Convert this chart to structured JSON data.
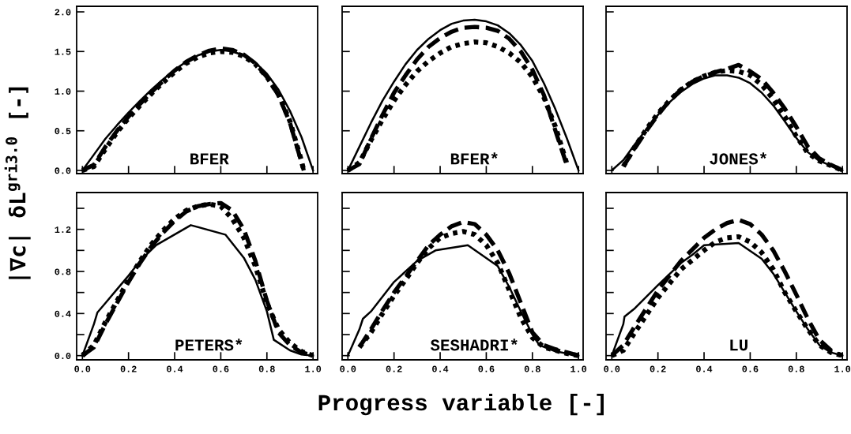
{
  "chart_data": [
    {
      "type": "line",
      "title": "BFER",
      "ylabel": "|∇c| δL$^{gri3.0}$ [-]",
      "xlim": [
        -0.025,
        1.02
      ],
      "ylim": [
        -0.04,
        2.07
      ],
      "tick_labels": "y",
      "grid": false,
      "xticks": [
        {
          "value": 0,
          "label": null
        },
        {
          "value": 0.2,
          "label": null
        },
        {
          "value": 0.4,
          "label": null
        },
        {
          "value": 0.6,
          "label": null
        },
        {
          "value": 0.8,
          "label": null
        },
        {
          "value": 1.0,
          "label": null
        }
      ],
      "yticks": [
        {
          "value": 0,
          "label": "0.0"
        },
        {
          "value": 0.5,
          "label": "0.5"
        },
        {
          "value": 1.0,
          "label": "1.0"
        },
        {
          "value": 1.5,
          "label": "1.5"
        },
        {
          "value": 2.0,
          "label": "2.0"
        }
      ],
      "series": [
        {
          "color": "#000000",
          "line_style": "solid",
          "x": [
            0,
            0.05,
            0.1,
            0.15,
            0.2,
            0.25,
            0.3,
            0.35,
            0.4,
            0.45,
            0.5,
            0.55,
            0.6,
            0.65,
            0.7,
            0.75,
            0.8,
            0.85,
            0.9,
            0.95,
            1.0
          ],
          "values": [
            0,
            0.2,
            0.4,
            0.57,
            0.73,
            0.88,
            1.02,
            1.15,
            1.27,
            1.37,
            1.45,
            1.5,
            1.52,
            1.5,
            1.45,
            1.36,
            1.22,
            1.02,
            0.75,
            0.42,
            0
          ]
        },
        {
          "color": "#000000",
          "line_style": "dashed",
          "x": [
            0,
            0.05,
            0.1,
            0.15,
            0.2,
            0.25,
            0.3,
            0.35,
            0.4,
            0.45,
            0.5,
            0.55,
            0.6,
            0.65,
            0.7,
            0.75,
            0.8,
            0.85,
            0.9,
            0.95,
            0.96
          ],
          "values": [
            0,
            0.07,
            0.3,
            0.5,
            0.68,
            0.84,
            0.99,
            1.13,
            1.26,
            1.37,
            1.45,
            1.51,
            1.54,
            1.52,
            1.46,
            1.35,
            1.18,
            0.95,
            0.6,
            0.1,
            0
          ]
        },
        {
          "color": "#000000",
          "line_style": "dotted",
          "x": [
            0,
            0.05,
            0.1,
            0.15,
            0.2,
            0.25,
            0.3,
            0.35,
            0.4,
            0.45,
            0.5,
            0.55,
            0.6,
            0.65,
            0.7,
            0.75,
            0.8,
            0.85,
            0.9,
            0.95,
            0.96
          ],
          "values": [
            0,
            0.05,
            0.27,
            0.48,
            0.66,
            0.82,
            0.97,
            1.11,
            1.24,
            1.35,
            1.43,
            1.48,
            1.5,
            1.49,
            1.44,
            1.34,
            1.18,
            0.96,
            0.62,
            0.12,
            0
          ]
        }
      ]
    },
    {
      "type": "line",
      "title": "BFER*",
      "xlim": [
        -0.025,
        1.02
      ],
      "ylim": [
        -0.04,
        2.07
      ],
      "tick_labels": false,
      "grid": false,
      "xticks": [
        {
          "value": 0,
          "label": null
        },
        {
          "value": 0.2,
          "label": null
        },
        {
          "value": 0.4,
          "label": null
        },
        {
          "value": 0.6,
          "label": null
        },
        {
          "value": 0.8,
          "label": null
        },
        {
          "value": 1.0,
          "label": null
        }
      ],
      "yticks": [
        {
          "value": 0,
          "label": null
        },
        {
          "value": 0.5,
          "label": null
        },
        {
          "value": 1.0,
          "label": null
        },
        {
          "value": 1.5,
          "label": null
        },
        {
          "value": 2.0,
          "label": null
        }
      ],
      "series": [
        {
          "color": "#000000",
          "line_style": "solid",
          "x": [
            0,
            0.05,
            0.1,
            0.15,
            0.2,
            0.25,
            0.3,
            0.35,
            0.4,
            0.45,
            0.5,
            0.55,
            0.6,
            0.65,
            0.7,
            0.75,
            0.8,
            0.85,
            0.9,
            0.95,
            1.0
          ],
          "values": [
            0,
            0.3,
            0.6,
            0.88,
            1.12,
            1.34,
            1.52,
            1.66,
            1.77,
            1.85,
            1.89,
            1.9,
            1.88,
            1.83,
            1.73,
            1.58,
            1.38,
            1.1,
            0.77,
            0.4,
            0
          ]
        },
        {
          "color": "#000000",
          "line_style": "dashed",
          "x": [
            0,
            0.05,
            0.1,
            0.15,
            0.2,
            0.25,
            0.3,
            0.35,
            0.4,
            0.45,
            0.5,
            0.55,
            0.6,
            0.65,
            0.7,
            0.75,
            0.8,
            0.85,
            0.9,
            0.95
          ],
          "values": [
            0,
            0.08,
            0.4,
            0.7,
            0.98,
            1.2,
            1.4,
            1.56,
            1.67,
            1.75,
            1.8,
            1.81,
            1.8,
            1.76,
            1.66,
            1.5,
            1.27,
            0.95,
            0.5,
            0.06
          ]
        },
        {
          "color": "#000000",
          "line_style": "dotted",
          "x": [
            0,
            0.05,
            0.1,
            0.15,
            0.2,
            0.25,
            0.3,
            0.35,
            0.4,
            0.45,
            0.5,
            0.55,
            0.6,
            0.65,
            0.7,
            0.75,
            0.8,
            0.85,
            0.9,
            0.95
          ],
          "values": [
            0,
            0.1,
            0.38,
            0.64,
            0.88,
            1.08,
            1.25,
            1.38,
            1.48,
            1.56,
            1.6,
            1.62,
            1.61,
            1.56,
            1.48,
            1.36,
            1.18,
            0.92,
            0.55,
            0.08
          ]
        }
      ]
    },
    {
      "type": "line",
      "title": "JONES*",
      "xlim": [
        -0.025,
        1.02
      ],
      "ylim": [
        -0.04,
        2.07
      ],
      "tick_labels": false,
      "grid": false,
      "xticks": [
        {
          "value": 0,
          "label": null
        },
        {
          "value": 0.2,
          "label": null
        },
        {
          "value": 0.4,
          "label": null
        },
        {
          "value": 0.6,
          "label": null
        },
        {
          "value": 0.8,
          "label": null
        },
        {
          "value": 1.0,
          "label": null
        }
      ],
      "yticks": [
        {
          "value": 0,
          "label": null
        },
        {
          "value": 0.5,
          "label": null
        },
        {
          "value": 1.0,
          "label": null
        },
        {
          "value": 1.5,
          "label": null
        },
        {
          "value": 2.0,
          "label": null
        }
      ],
      "series": [
        {
          "color": "#000000",
          "line_style": "solid",
          "x": [
            0,
            0.05,
            0.1,
            0.15,
            0.2,
            0.25,
            0.3,
            0.35,
            0.4,
            0.45,
            0.5,
            0.55,
            0.6,
            0.65,
            0.7,
            0.75,
            0.8,
            0.85,
            0.9,
            0.95,
            1.0
          ],
          "values": [
            0,
            0.13,
            0.33,
            0.52,
            0.7,
            0.86,
            0.99,
            1.09,
            1.16,
            1.2,
            1.2,
            1.17,
            1.1,
            0.98,
            0.82,
            0.62,
            0.41,
            0.23,
            0.12,
            0.06,
            0
          ]
        },
        {
          "color": "#000000",
          "line_style": "dashed",
          "x": [
            0.05,
            0.1,
            0.15,
            0.2,
            0.25,
            0.3,
            0.35,
            0.4,
            0.45,
            0.5,
            0.55,
            0.6,
            0.65,
            0.7,
            0.75,
            0.8,
            0.85,
            0.9,
            0.95,
            1.0
          ],
          "values": [
            0.05,
            0.28,
            0.5,
            0.7,
            0.88,
            1.02,
            1.12,
            1.19,
            1.24,
            1.28,
            1.33,
            1.25,
            1.15,
            0.98,
            0.78,
            0.55,
            0.3,
            0.15,
            0.07,
            0
          ]
        },
        {
          "color": "#000000",
          "line_style": "dotted",
          "x": [
            0.05,
            0.1,
            0.15,
            0.2,
            0.25,
            0.3,
            0.35,
            0.4,
            0.45,
            0.5,
            0.55,
            0.6,
            0.65,
            0.7,
            0.75,
            0.8,
            0.85,
            0.9,
            0.95,
            1.0
          ],
          "values": [
            0.05,
            0.3,
            0.52,
            0.72,
            0.88,
            1.02,
            1.12,
            1.19,
            1.24,
            1.26,
            1.25,
            1.2,
            1.08,
            0.9,
            0.68,
            0.43,
            0.22,
            0.12,
            0.06,
            0
          ]
        }
      ]
    },
    {
      "type": "line",
      "title": "PETERS*",
      "xlim": [
        -0.025,
        1.02
      ],
      "ylim": [
        -0.04,
        1.55
      ],
      "grid": false,
      "xticks": [
        {
          "value": 0,
          "label": "0.0"
        },
        {
          "value": 0.2,
          "label": "0.2"
        },
        {
          "value": 0.4,
          "label": "0.4"
        },
        {
          "value": 0.6,
          "label": "0.6"
        },
        {
          "value": 0.8,
          "label": "0.8"
        },
        {
          "value": 1.0,
          "label": "1.0"
        }
      ],
      "yticks": [
        {
          "value": 0,
          "label": "0.0"
        },
        {
          "value": 0.2,
          "label": null
        },
        {
          "value": 0.4,
          "label": "0.4"
        },
        {
          "value": 0.6,
          "label": null
        },
        {
          "value": 0.8,
          "label": "0.8"
        },
        {
          "value": 1.0,
          "label": null
        },
        {
          "value": 1.2,
          "label": "1.2"
        },
        {
          "value": 1.4,
          "label": null
        }
      ],
      "series": [
        {
          "color": "#000000",
          "line_style": "solid",
          "x": [
            0,
            0.05,
            0.065,
            0.1,
            0.15,
            0.2,
            0.25,
            0.32,
            0.47,
            0.62,
            0.7,
            0.75,
            0.8,
            0.83,
            0.9,
            0.95,
            1.0
          ],
          "values": [
            0,
            0.3,
            0.41,
            0.5,
            0.63,
            0.76,
            0.9,
            1.05,
            1.24,
            1.15,
            0.93,
            0.72,
            0.42,
            0.15,
            0.05,
            0.01,
            0
          ]
        },
        {
          "color": "#000000",
          "line_style": "dashed",
          "x": [
            0,
            0.05,
            0.1,
            0.15,
            0.2,
            0.25,
            0.3,
            0.35,
            0.4,
            0.45,
            0.5,
            0.55,
            0.6,
            0.65,
            0.7,
            0.75,
            0.8,
            0.85,
            0.9,
            0.95,
            1.0
          ],
          "values": [
            0,
            0.08,
            0.3,
            0.5,
            0.7,
            0.88,
            1.04,
            1.17,
            1.28,
            1.37,
            1.42,
            1.44,
            1.45,
            1.38,
            1.2,
            0.9,
            0.52,
            0.22,
            0.1,
            0.03,
            0
          ]
        },
        {
          "color": "#000000",
          "line_style": "dotted",
          "x": [
            0,
            0.05,
            0.1,
            0.15,
            0.2,
            0.25,
            0.3,
            0.35,
            0.4,
            0.45,
            0.5,
            0.55,
            0.6,
            0.65,
            0.7,
            0.75,
            0.8,
            0.85,
            0.9,
            0.95,
            1.0
          ],
          "values": [
            0,
            0.1,
            0.32,
            0.52,
            0.72,
            0.9,
            1.06,
            1.19,
            1.3,
            1.38,
            1.42,
            1.44,
            1.42,
            1.3,
            1.12,
            0.85,
            0.5,
            0.25,
            0.12,
            0.04,
            0
          ]
        }
      ]
    },
    {
      "type": "line",
      "title": "SESHADRI*",
      "xlabel": "Progress variable [-]",
      "xlim": [
        -0.025,
        1.02
      ],
      "ylim": [
        -0.04,
        1.55
      ],
      "tick_labels": "x",
      "grid": false,
      "xticks": [
        {
          "value": 0,
          "label": "0.0"
        },
        {
          "value": 0.2,
          "label": "0.2"
        },
        {
          "value": 0.4,
          "label": "0.4"
        },
        {
          "value": 0.6,
          "label": "0.6"
        },
        {
          "value": 0.8,
          "label": "0.8"
        },
        {
          "value": 1.0,
          "label": "1.0"
        }
      ],
      "yticks": [
        {
          "value": 0,
          "label": null
        },
        {
          "value": 0.2,
          "label": null
        },
        {
          "value": 0.4,
          "label": null
        },
        {
          "value": 0.6,
          "label": null
        },
        {
          "value": 0.8,
          "label": null
        },
        {
          "value": 1.0,
          "label": null
        },
        {
          "value": 1.2,
          "label": null
        },
        {
          "value": 1.4,
          "label": null
        }
      ],
      "series": [
        {
          "color": "#000000",
          "line_style": "solid",
          "x": [
            0,
            0.05,
            0.065,
            0.1,
            0.2,
            0.3,
            0.38,
            0.52,
            0.65,
            0.7,
            0.75,
            0.8,
            0.83,
            0.9,
            1.0
          ],
          "values": [
            0,
            0.25,
            0.35,
            0.42,
            0.7,
            0.9,
            1.0,
            1.05,
            0.85,
            0.65,
            0.42,
            0.2,
            0.1,
            0.04,
            0
          ]
        },
        {
          "color": "#000000",
          "line_style": "dashed",
          "x": [
            0.05,
            0.1,
            0.15,
            0.2,
            0.25,
            0.3,
            0.35,
            0.4,
            0.45,
            0.5,
            0.55,
            0.6,
            0.65,
            0.7,
            0.75,
            0.8,
            0.85,
            0.9,
            0.95,
            1.0
          ],
          "values": [
            0.08,
            0.25,
            0.43,
            0.6,
            0.75,
            0.9,
            1.05,
            1.15,
            1.23,
            1.27,
            1.25,
            1.15,
            1.0,
            0.78,
            0.5,
            0.22,
            0.1,
            0.06,
            0.03,
            0
          ]
        },
        {
          "color": "#000000",
          "line_style": "dotted",
          "x": [
            0.05,
            0.1,
            0.15,
            0.2,
            0.25,
            0.3,
            0.35,
            0.4,
            0.45,
            0.5,
            0.55,
            0.6,
            0.65,
            0.7,
            0.75,
            0.8,
            0.85,
            0.9,
            0.95,
            1.0
          ],
          "values": [
            0.08,
            0.22,
            0.4,
            0.57,
            0.72,
            0.88,
            1.02,
            1.12,
            1.16,
            1.18,
            1.15,
            1.05,
            0.88,
            0.62,
            0.36,
            0.17,
            0.08,
            0.05,
            0.02,
            0
          ]
        }
      ]
    },
    {
      "type": "line",
      "title": "LU",
      "xlim": [
        -0.025,
        1.02
      ],
      "ylim": [
        -0.04,
        1.55
      ],
      "tick_labels": "x",
      "grid": false,
      "xticks": [
        {
          "value": 0,
          "label": "0.0"
        },
        {
          "value": 0.2,
          "label": "0.2"
        },
        {
          "value": 0.4,
          "label": "0.4"
        },
        {
          "value": 0.6,
          "label": "0.6"
        },
        {
          "value": 0.8,
          "label": "0.8"
        },
        {
          "value": 1.0,
          "label": "1.0"
        }
      ],
      "yticks": [
        {
          "value": 0,
          "label": null
        },
        {
          "value": 0.2,
          "label": null
        },
        {
          "value": 0.4,
          "label": null
        },
        {
          "value": 0.6,
          "label": null
        },
        {
          "value": 0.8,
          "label": null
        },
        {
          "value": 1.0,
          "label": null
        },
        {
          "value": 1.2,
          "label": null
        },
        {
          "value": 1.4,
          "label": null
        }
      ],
      "series": [
        {
          "color": "#000000",
          "line_style": "solid",
          "x": [
            0,
            0.05,
            0.055,
            0.1,
            0.2,
            0.3,
            0.35,
            0.4,
            0.55,
            0.65,
            0.7,
            0.75,
            0.8,
            0.85,
            0.9,
            0.95,
            1.0
          ],
          "values": [
            0,
            0.3,
            0.37,
            0.45,
            0.67,
            0.88,
            0.96,
            1.05,
            1.07,
            0.92,
            0.78,
            0.6,
            0.42,
            0.25,
            0.1,
            0.03,
            0
          ]
        },
        {
          "color": "#000000",
          "line_style": "dashed",
          "x": [
            0,
            0.05,
            0.1,
            0.2,
            0.3,
            0.4,
            0.45,
            0.5,
            0.55,
            0.6,
            0.65,
            0.7,
            0.75,
            0.8,
            0.85,
            0.9,
            0.95,
            1.0
          ],
          "values": [
            0,
            0.1,
            0.28,
            0.62,
            0.9,
            1.12,
            1.2,
            1.26,
            1.29,
            1.25,
            1.15,
            1.0,
            0.8,
            0.58,
            0.35,
            0.15,
            0.05,
            0
          ]
        },
        {
          "color": "#000000",
          "line_style": "dotted",
          "x": [
            0,
            0.05,
            0.1,
            0.2,
            0.3,
            0.4,
            0.45,
            0.5,
            0.55,
            0.6,
            0.65,
            0.7,
            0.75,
            0.8,
            0.85,
            0.9,
            0.95,
            1.0
          ],
          "values": [
            0,
            0.05,
            0.22,
            0.55,
            0.82,
            1.0,
            1.08,
            1.12,
            1.13,
            1.08,
            0.98,
            0.82,
            0.6,
            0.42,
            0.25,
            0.1,
            0.03,
            0
          ]
        }
      ]
    }
  ]
}
